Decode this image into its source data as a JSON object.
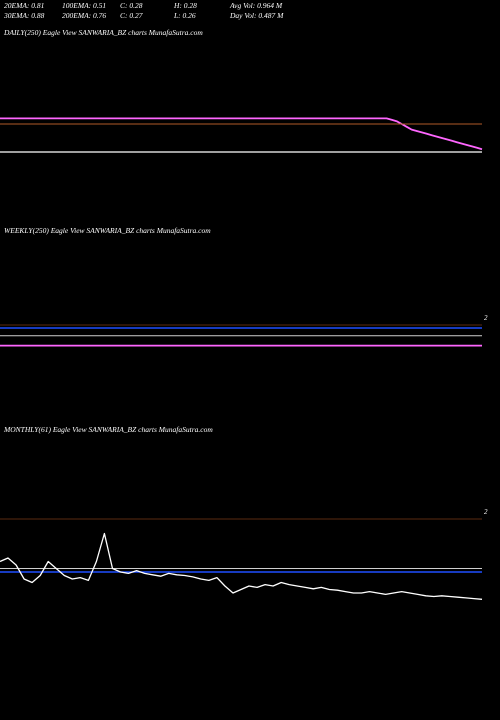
{
  "stats": [
    {
      "label": "20EMA: 0.81"
    },
    {
      "label": "100EMA: 0.51"
    },
    {
      "label": "C: 0.28"
    },
    {
      "label": "H: 0.28"
    },
    {
      "label": "Avg Vol: 0.964  M"
    },
    {
      "label": "30EMA: 0.88"
    },
    {
      "label": "200EMA: 0.76"
    },
    {
      "label": "C: 0.27"
    },
    {
      "label": "L: 0.26"
    },
    {
      "label": "Day Vol: 0.487 M"
    }
  ],
  "panels": {
    "daily_title": "DAILY(250) Eagle   View  SANWARIA_BZ charts MunafaSutra.com",
    "weekly_title": "WEEKLY(250) Eagle   View  SANWARIA_BZ charts MunafaSutra.com",
    "monthly_title": "MONTHLY(61) Eagle   View  SANWARIA_BZ charts MunafaSutra.com",
    "weekly_pane_num": "2",
    "monthly_pane_num": "2"
  },
  "colors": {
    "background": "#000000",
    "price": "#ffffff",
    "ema_short": "#ff66ff",
    "ema_mid": "#1f4fff",
    "ema_long": "#cfcfcf",
    "ema_brown": "#b05a28",
    "divider": "#5a2a10"
  },
  "chart_data": [
    {
      "type": "line",
      "name": "daily",
      "ylim": [
        0,
        1
      ],
      "series": [
        {
          "key": "ema_short",
          "values": [
            0.72,
            0.72,
            0.72,
            0.72,
            0.72,
            0.72,
            0.72,
            0.72,
            0.72,
            0.72,
            0.72,
            0.72,
            0.72,
            0.72,
            0.72,
            0.72,
            0.72,
            0.72,
            0.72,
            0.72,
            0.72,
            0.72,
            0.72,
            0.72,
            0.72,
            0.72,
            0.72,
            0.72,
            0.72,
            0.72,
            0.72,
            0.72,
            0.72,
            0.72,
            0.72,
            0.72,
            0.72,
            0.72,
            0.72,
            0.72,
            0.72,
            0.72,
            0.72,
            0.72,
            0.72,
            0.72,
            0.72,
            0.72,
            0.72,
            0.72,
            0.72,
            0.72,
            0.72,
            0.72,
            0.72,
            0.72,
            0.72,
            0.72,
            0.72,
            0.72,
            0.72,
            0.72,
            0.72,
            0.72,
            0.72,
            0.72,
            0.72,
            0.72,
            0.72,
            0.72,
            0.72,
            0.72,
            0.72,
            0.72,
            0.72,
            0.72,
            0.72,
            0.72,
            0.715,
            0.71,
            0.7,
            0.69,
            0.68,
            0.675,
            0.67,
            0.665,
            0.66,
            0.655,
            0.65,
            0.645,
            0.64,
            0.635,
            0.63,
            0.625,
            0.62,
            0.615,
            0.61
          ]
        },
        {
          "key": "ema_brown",
          "values": [
            0.7,
            0.7,
            0.7,
            0.7,
            0.7,
            0.7,
            0.7,
            0.7,
            0.7,
            0.7,
            0.7,
            0.7,
            0.7,
            0.7,
            0.7,
            0.7,
            0.7,
            0.7,
            0.7,
            0.7,
            0.7,
            0.7,
            0.7,
            0.7,
            0.7,
            0.7,
            0.7,
            0.7,
            0.7,
            0.7,
            0.7,
            0.7,
            0.7,
            0.7,
            0.7,
            0.7,
            0.7,
            0.7,
            0.7,
            0.7,
            0.7,
            0.7,
            0.7,
            0.7,
            0.7,
            0.7,
            0.7,
            0.7,
            0.7,
            0.7,
            0.7,
            0.7,
            0.7,
            0.7,
            0.7,
            0.7,
            0.7,
            0.7,
            0.7,
            0.7,
            0.7,
            0.7,
            0.7,
            0.7,
            0.7,
            0.7,
            0.7,
            0.7,
            0.7,
            0.7,
            0.7,
            0.7,
            0.7,
            0.7,
            0.7,
            0.7,
            0.7,
            0.7,
            0.7,
            0.7,
            0.7,
            0.7,
            0.7,
            0.7,
            0.7,
            0.7,
            0.7,
            0.7,
            0.7,
            0.7,
            0.7,
            0.7,
            0.7,
            0.7,
            0.7,
            0.7,
            0.7
          ]
        },
        {
          "key": "price",
          "values": [
            0.6,
            0.6,
            0.6,
            0.6,
            0.6,
            0.6,
            0.6,
            0.6,
            0.6,
            0.6,
            0.6,
            0.6,
            0.6,
            0.6,
            0.6,
            0.6,
            0.6,
            0.6,
            0.6,
            0.6,
            0.6,
            0.6,
            0.6,
            0.6,
            0.6,
            0.6,
            0.6,
            0.6,
            0.6,
            0.6,
            0.6,
            0.6,
            0.6,
            0.6,
            0.6,
            0.6,
            0.6,
            0.6,
            0.6,
            0.6,
            0.6,
            0.6,
            0.6,
            0.6,
            0.6,
            0.6,
            0.6,
            0.6,
            0.6,
            0.6,
            0.6,
            0.6,
            0.6,
            0.6,
            0.6,
            0.6,
            0.6,
            0.6,
            0.6,
            0.6,
            0.6,
            0.6,
            0.6,
            0.6,
            0.6,
            0.6,
            0.6,
            0.6,
            0.6,
            0.6,
            0.6,
            0.6,
            0.6,
            0.6,
            0.6,
            0.6,
            0.6,
            0.6,
            0.6,
            0.6,
            0.6,
            0.6,
            0.6,
            0.6,
            0.6,
            0.6,
            0.6,
            0.6,
            0.6,
            0.6,
            0.6,
            0.6,
            0.6,
            0.6,
            0.6,
            0.6,
            0.6
          ]
        }
      ]
    },
    {
      "type": "line",
      "name": "weekly",
      "ylim": [
        0,
        1
      ],
      "series": [
        {
          "key": "ema_short",
          "values": [
            0.52,
            0.52,
            0.52,
            0.52,
            0.52,
            0.52,
            0.52,
            0.52,
            0.52,
            0.52,
            0.52,
            0.52,
            0.52,
            0.52,
            0.52,
            0.52,
            0.52,
            0.52,
            0.52,
            0.52,
            0.52,
            0.52,
            0.52,
            0.52,
            0.52,
            0.52,
            0.52,
            0.52,
            0.52,
            0.52,
            0.52,
            0.52,
            0.52,
            0.52,
            0.52,
            0.52,
            0.52,
            0.52,
            0.52,
            0.52,
            0.52,
            0.52,
            0.52,
            0.52,
            0.52,
            0.52,
            0.52,
            0.52,
            0.52,
            0.52,
            0.52,
            0.52,
            0.52,
            0.52,
            0.52,
            0.52,
            0.52,
            0.52,
            0.52,
            0.52,
            0.52,
            0.52,
            0.52,
            0.52,
            0.52,
            0.52,
            0.52,
            0.52,
            0.52,
            0.52,
            0.52,
            0.52,
            0.52,
            0.52,
            0.52,
            0.52,
            0.52,
            0.52,
            0.52,
            0.52,
            0.52,
            0.52,
            0.52,
            0.52,
            0.52,
            0.52,
            0.52,
            0.52,
            0.52,
            0.52,
            0.52,
            0.52,
            0.52,
            0.52,
            0.52,
            0.52,
            0.52
          ]
        },
        {
          "key": "ema_long",
          "values": [
            0.565,
            0.565,
            0.565,
            0.565,
            0.565,
            0.565,
            0.565,
            0.565,
            0.565,
            0.565,
            0.565,
            0.565,
            0.565,
            0.565,
            0.565,
            0.565,
            0.565,
            0.565,
            0.565,
            0.565,
            0.565,
            0.565,
            0.565,
            0.565,
            0.565,
            0.565,
            0.565,
            0.565,
            0.565,
            0.565,
            0.565,
            0.565,
            0.565,
            0.565,
            0.565,
            0.565,
            0.565,
            0.565,
            0.565,
            0.565,
            0.565,
            0.565,
            0.565,
            0.565,
            0.565,
            0.565,
            0.565,
            0.565,
            0.565,
            0.565,
            0.565,
            0.565,
            0.565,
            0.565,
            0.565,
            0.565,
            0.565,
            0.565,
            0.565,
            0.565,
            0.565,
            0.565,
            0.565,
            0.565,
            0.565,
            0.565,
            0.565,
            0.565,
            0.565,
            0.565,
            0.565,
            0.565,
            0.565,
            0.565,
            0.565,
            0.565,
            0.565,
            0.565,
            0.565,
            0.565,
            0.565,
            0.565,
            0.565,
            0.565,
            0.565,
            0.565,
            0.565,
            0.565,
            0.565,
            0.565,
            0.565,
            0.565,
            0.565,
            0.565,
            0.565,
            0.565,
            0.565
          ]
        },
        {
          "key": "ema_mid",
          "values": [
            0.6,
            0.6,
            0.6,
            0.6,
            0.6,
            0.6,
            0.6,
            0.6,
            0.6,
            0.6,
            0.6,
            0.6,
            0.6,
            0.6,
            0.6,
            0.6,
            0.6,
            0.6,
            0.6,
            0.6,
            0.6,
            0.6,
            0.6,
            0.6,
            0.6,
            0.6,
            0.6,
            0.6,
            0.6,
            0.6,
            0.6,
            0.6,
            0.6,
            0.6,
            0.6,
            0.6,
            0.6,
            0.6,
            0.6,
            0.6,
            0.6,
            0.6,
            0.6,
            0.6,
            0.6,
            0.6,
            0.6,
            0.6,
            0.6,
            0.6,
            0.6,
            0.6,
            0.6,
            0.6,
            0.6,
            0.6,
            0.6,
            0.6,
            0.6,
            0.6,
            0.6,
            0.6,
            0.6,
            0.6,
            0.6,
            0.6,
            0.6,
            0.6,
            0.6,
            0.6,
            0.6,
            0.6,
            0.6,
            0.6,
            0.6,
            0.6,
            0.6,
            0.6,
            0.6,
            0.6,
            0.6,
            0.6,
            0.6,
            0.6,
            0.6,
            0.6,
            0.6,
            0.6,
            0.6,
            0.6,
            0.6,
            0.6,
            0.6,
            0.6,
            0.6,
            0.6,
            0.6
          ]
        }
      ]
    },
    {
      "type": "line",
      "name": "monthly",
      "ylim": [
        0,
        1
      ],
      "series": [
        {
          "key": "ema_mid",
          "values": [
            0.4,
            0.4,
            0.4,
            0.4,
            0.4,
            0.4,
            0.4,
            0.4,
            0.4,
            0.4,
            0.4,
            0.4,
            0.4,
            0.4,
            0.4,
            0.4,
            0.4,
            0.4,
            0.4,
            0.4,
            0.4,
            0.4,
            0.4,
            0.4,
            0.4,
            0.4,
            0.4,
            0.4,
            0.4,
            0.4,
            0.4,
            0.4,
            0.4,
            0.4,
            0.4,
            0.4,
            0.4,
            0.4,
            0.4,
            0.4,
            0.4,
            0.4,
            0.4,
            0.4,
            0.4,
            0.4,
            0.4,
            0.4,
            0.4,
            0.4,
            0.4,
            0.4,
            0.4,
            0.4,
            0.4,
            0.4,
            0.4,
            0.4,
            0.4,
            0.4,
            0.4
          ]
        },
        {
          "key": "ema_long",
          "values": [
            0.45,
            0.45,
            0.45,
            0.45,
            0.45,
            0.45,
            0.45,
            0.45,
            0.45,
            0.45,
            0.45,
            0.45,
            0.45,
            0.45,
            0.45,
            0.45,
            0.45,
            0.45,
            0.45,
            0.45,
            0.45,
            0.45,
            0.45,
            0.45,
            0.45,
            0.45,
            0.45,
            0.45,
            0.45,
            0.45,
            0.45,
            0.45,
            0.45,
            0.45,
            0.45,
            0.45,
            0.45,
            0.45,
            0.45,
            0.45,
            0.45,
            0.45,
            0.45,
            0.45,
            0.45,
            0.45,
            0.45,
            0.45,
            0.45,
            0.45,
            0.45,
            0.45,
            0.45,
            0.45,
            0.45,
            0.45,
            0.45,
            0.45,
            0.45,
            0.45,
            0.45
          ]
        },
        {
          "key": "price",
          "values": [
            0.55,
            0.6,
            0.5,
            0.3,
            0.25,
            0.35,
            0.55,
            0.45,
            0.35,
            0.3,
            0.32,
            0.28,
            0.55,
            0.95,
            0.45,
            0.4,
            0.38,
            0.42,
            0.38,
            0.36,
            0.34,
            0.38,
            0.36,
            0.35,
            0.33,
            0.3,
            0.28,
            0.32,
            0.2,
            0.1,
            0.15,
            0.2,
            0.18,
            0.22,
            0.2,
            0.25,
            0.22,
            0.2,
            0.18,
            0.16,
            0.18,
            0.15,
            0.14,
            0.12,
            0.1,
            0.1,
            0.12,
            0.1,
            0.08,
            0.1,
            0.12,
            0.1,
            0.08,
            0.06,
            0.05,
            0.06,
            0.05,
            0.04,
            0.03,
            0.02,
            0.01
          ]
        }
      ]
    }
  ]
}
